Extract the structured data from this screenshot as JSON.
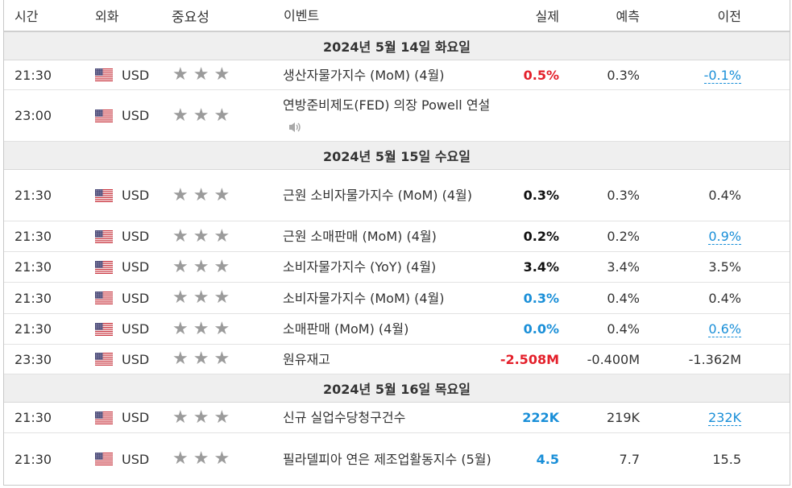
{
  "header": {
    "time": "시간",
    "currency": "외화",
    "importance": "중요성",
    "event": "이벤트",
    "actual": "실제",
    "forecast": "예측",
    "previous": "이전"
  },
  "dates": [
    "2024년 5월 14일 화요일",
    "2024년 5월 15일 수요일",
    "2024년 5월 16일 목요일"
  ],
  "rows": [
    {
      "time": "21:30",
      "currency": "USD",
      "event": "생산자물가지수 (MoM) (4월)",
      "actual": "0.5%",
      "forecast": "0.3%",
      "previous": "-0.1%"
    },
    {
      "time": "23:00",
      "currency": "USD",
      "event": "연방준비제도(FED) 의장 Powell 연설",
      "actual": "",
      "forecast": "",
      "previous": ""
    },
    {
      "time": "21:30",
      "currency": "USD",
      "event": "근원 소비자물가지수 (MoM) (4월)",
      "actual": "0.3%",
      "forecast": "0.3%",
      "previous": "0.4%"
    },
    {
      "time": "21:30",
      "currency": "USD",
      "event": "근원 소매판매 (MoM) (4월)",
      "actual": "0.2%",
      "forecast": "0.2%",
      "previous": "0.9%"
    },
    {
      "time": "21:30",
      "currency": "USD",
      "event": "소비자물가지수 (YoY) (4월)",
      "actual": "3.4%",
      "forecast": "3.4%",
      "previous": "3.5%"
    },
    {
      "time": "21:30",
      "currency": "USD",
      "event": "소비자물가지수 (MoM) (4월)",
      "actual": "0.3%",
      "forecast": "0.4%",
      "previous": "0.4%"
    },
    {
      "time": "21:30",
      "currency": "USD",
      "event": "소매판매 (MoM) (4월)",
      "actual": "0.0%",
      "forecast": "0.4%",
      "previous": "0.6%"
    },
    {
      "time": "23:30",
      "currency": "USD",
      "event": "원유재고",
      "actual": "-2.508M",
      "forecast": "-0.400M",
      "previous": "-1.362M"
    },
    {
      "time": "21:30",
      "currency": "USD",
      "event": "신규 실업수당청구건수",
      "actual": "222K",
      "forecast": "219K",
      "previous": "232K"
    },
    {
      "time": "21:30",
      "currency": "USD",
      "event": "필라델피아 연은 제조업활동지수 (5월)",
      "actual": "4.5",
      "forecast": "7.7",
      "previous": "15.5"
    }
  ],
  "importance_stars": 3,
  "icons": {
    "flag": "us-flag-icon",
    "star": "star-icon",
    "speaker": "speaker-icon"
  },
  "colors": {
    "red": "#e4202b",
    "blue": "#1a8fd8",
    "star": "#9b9b9b",
    "date_bg": "#efefef"
  }
}
